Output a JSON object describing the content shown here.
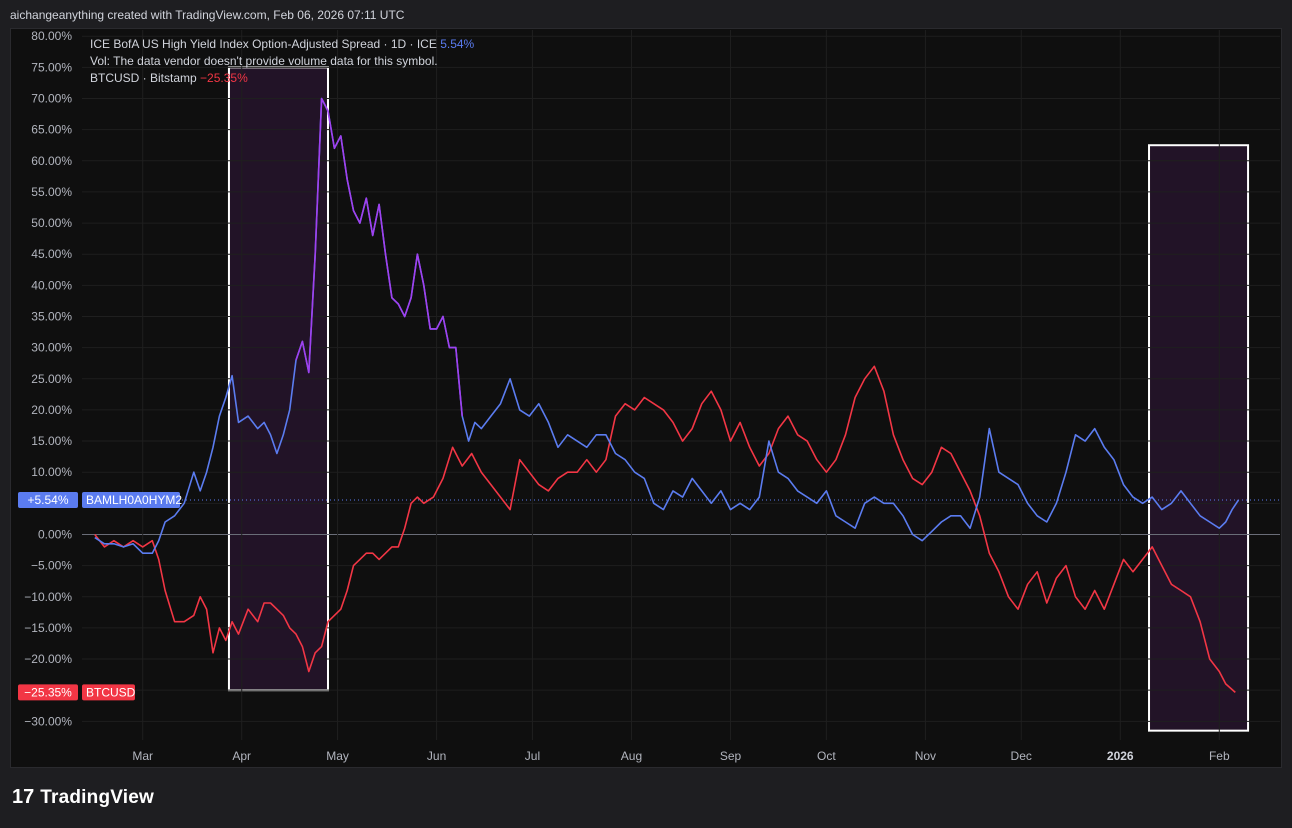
{
  "header": {
    "created_by": "aichangeanything created with TradingView.com, Feb 06, 2026 07:11 UTC"
  },
  "legend": {
    "line1_text": "ICE BofA US High Yield Index Option-Adjusted Spread · 1D · ICE",
    "line1_value": "5.54%",
    "line2_text": "Vol: The data vendor doesn't provide volume data for this symbol.",
    "line3_text": "BTCUSD · Bitstamp",
    "line3_value": "−25.35%"
  },
  "footer": {
    "brand": "TradingView",
    "brand_mark": "17"
  },
  "colors": {
    "spread": "#5b7cf0",
    "spread_highlight": "#a040f0",
    "btc": "#f23645",
    "box_fill": "#2a1630",
    "grid": "#1f1f1f",
    "text": "#b2b5be"
  },
  "chart_data": {
    "type": "line",
    "title": "",
    "xlabel": "",
    "ylabel": "",
    "x_ticks": [
      "Mar",
      "Apr",
      "May",
      "Jun",
      "Jul",
      "Aug",
      "Sep",
      "Oct",
      "Nov",
      "Dec",
      "2026",
      "Feb"
    ],
    "y_ticks": [
      "80.00%",
      "75.00%",
      "70.00%",
      "65.00%",
      "60.00%",
      "55.00%",
      "50.00%",
      "45.00%",
      "40.00%",
      "35.00%",
      "30.00%",
      "25.00%",
      "20.00%",
      "15.00%",
      "10.00%",
      "5.00%",
      "0.00%",
      "−5.00%",
      "−10.00%",
      "−15.00%",
      "−20.00%",
      "−25.00%",
      "−30.00%"
    ],
    "ylim": [
      -33,
      81
    ],
    "xlim": [
      "2025-02-10",
      "2026-02-20"
    ],
    "grid": true,
    "price_labels": [
      {
        "value_label": "+5.54%",
        "name_label": "BAMLH0A0HYM2",
        "value": 5.54,
        "color": "#5b7cf0"
      },
      {
        "value_label": "−25.35%",
        "name_label": "BTCUSD",
        "value": -25.35,
        "color": "#f23645"
      }
    ],
    "highlight_boxes": [
      {
        "x_start": "2025-03-28",
        "x_end": "2025-04-28",
        "y_top": 75,
        "y_bottom": -25
      },
      {
        "x_start": "2026-01-10",
        "x_end": "2026-02-10",
        "y_top": 62.5,
        "y_bottom": -31.5
      }
    ],
    "series": [
      {
        "name": "BAMLH0A0HYM2",
        "final_value": 5.54,
        "points": [
          [
            "2025-02-14",
            -0.5
          ],
          [
            "2025-02-17",
            -1.5
          ],
          [
            "2025-02-20",
            -1.5
          ],
          [
            "2025-02-23",
            -2
          ],
          [
            "2025-02-26",
            -1.5
          ],
          [
            "2025-03-01",
            -3
          ],
          [
            "2025-03-04",
            -3
          ],
          [
            "2025-03-06",
            -1
          ],
          [
            "2025-03-08",
            2
          ],
          [
            "2025-03-11",
            3
          ],
          [
            "2025-03-14",
            5
          ],
          [
            "2025-03-17",
            10
          ],
          [
            "2025-03-19",
            7
          ],
          [
            "2025-03-21",
            10
          ],
          [
            "2025-03-23",
            14
          ],
          [
            "2025-03-25",
            19
          ],
          [
            "2025-03-27",
            22
          ],
          [
            "2025-03-29",
            25.5
          ],
          [
            "2025-03-31",
            18
          ],
          [
            "2025-04-03",
            19
          ],
          [
            "2025-04-06",
            17
          ],
          [
            "2025-04-08",
            18
          ],
          [
            "2025-04-10",
            16
          ],
          [
            "2025-04-12",
            13
          ],
          [
            "2025-04-14",
            16
          ],
          [
            "2025-04-16",
            20
          ],
          [
            "2025-04-18",
            28
          ],
          [
            "2025-04-20",
            31
          ],
          [
            "2025-04-22",
            26
          ],
          [
            "2025-04-24",
            45
          ],
          [
            "2025-04-26",
            70
          ],
          [
            "2025-04-28",
            68
          ],
          [
            "2025-04-30",
            62
          ],
          [
            "2025-05-02",
            64
          ],
          [
            "2025-05-04",
            57
          ],
          [
            "2025-05-06",
            52
          ],
          [
            "2025-05-08",
            50
          ],
          [
            "2025-05-10",
            54
          ],
          [
            "2025-05-12",
            48
          ],
          [
            "2025-05-14",
            53
          ],
          [
            "2025-05-16",
            45
          ],
          [
            "2025-05-18",
            38
          ],
          [
            "2025-05-20",
            37
          ],
          [
            "2025-05-22",
            35
          ],
          [
            "2025-05-24",
            38
          ],
          [
            "2025-05-26",
            45
          ],
          [
            "2025-05-28",
            40
          ],
          [
            "2025-05-30",
            33
          ],
          [
            "2025-06-01",
            33
          ],
          [
            "2025-06-03",
            35
          ],
          [
            "2025-06-05",
            30
          ],
          [
            "2025-06-07",
            30
          ],
          [
            "2025-06-09",
            19
          ],
          [
            "2025-06-11",
            15
          ],
          [
            "2025-06-13",
            18
          ],
          [
            "2025-06-15",
            17
          ],
          [
            "2025-06-18",
            19
          ],
          [
            "2025-06-21",
            21
          ],
          [
            "2025-06-24",
            25
          ],
          [
            "2025-06-27",
            20
          ],
          [
            "2025-06-30",
            19
          ],
          [
            "2025-07-03",
            21
          ],
          [
            "2025-07-06",
            18
          ],
          [
            "2025-07-09",
            14
          ],
          [
            "2025-07-12",
            16
          ],
          [
            "2025-07-15",
            15
          ],
          [
            "2025-07-18",
            14
          ],
          [
            "2025-07-21",
            16
          ],
          [
            "2025-07-24",
            16
          ],
          [
            "2025-07-27",
            13
          ],
          [
            "2025-07-30",
            12
          ],
          [
            "2025-08-02",
            10
          ],
          [
            "2025-08-05",
            9
          ],
          [
            "2025-08-08",
            5
          ],
          [
            "2025-08-11",
            4
          ],
          [
            "2025-08-14",
            7
          ],
          [
            "2025-08-17",
            6
          ],
          [
            "2025-08-20",
            9
          ],
          [
            "2025-08-23",
            7
          ],
          [
            "2025-08-26",
            5
          ],
          [
            "2025-08-29",
            7
          ],
          [
            "2025-09-01",
            4
          ],
          [
            "2025-09-04",
            5
          ],
          [
            "2025-09-07",
            4
          ],
          [
            "2025-09-10",
            6
          ],
          [
            "2025-09-13",
            15
          ],
          [
            "2025-09-16",
            10
          ],
          [
            "2025-09-19",
            9
          ],
          [
            "2025-09-22",
            7
          ],
          [
            "2025-09-25",
            6
          ],
          [
            "2025-09-28",
            5
          ],
          [
            "2025-10-01",
            7
          ],
          [
            "2025-10-04",
            3
          ],
          [
            "2025-10-07",
            2
          ],
          [
            "2025-10-10",
            1
          ],
          [
            "2025-10-13",
            5
          ],
          [
            "2025-10-16",
            6
          ],
          [
            "2025-10-19",
            5
          ],
          [
            "2025-10-22",
            5
          ],
          [
            "2025-10-25",
            3
          ],
          [
            "2025-10-28",
            0
          ],
          [
            "2025-10-31",
            -1
          ],
          [
            "2025-11-03",
            0.5
          ],
          [
            "2025-11-06",
            2
          ],
          [
            "2025-11-09",
            3
          ],
          [
            "2025-11-12",
            3
          ],
          [
            "2025-11-15",
            1
          ],
          [
            "2025-11-18",
            6
          ],
          [
            "2025-11-21",
            17
          ],
          [
            "2025-11-24",
            10
          ],
          [
            "2025-11-27",
            9
          ],
          [
            "2025-11-30",
            8
          ],
          [
            "2025-12-03",
            5
          ],
          [
            "2025-12-06",
            3
          ],
          [
            "2025-12-09",
            2
          ],
          [
            "2025-12-12",
            5
          ],
          [
            "2025-12-15",
            10
          ],
          [
            "2025-12-18",
            16
          ],
          [
            "2025-12-21",
            15
          ],
          [
            "2025-12-24",
            17
          ],
          [
            "2025-12-27",
            14
          ],
          [
            "2025-12-30",
            12
          ],
          [
            "2026-01-02",
            8
          ],
          [
            "2026-01-05",
            6
          ],
          [
            "2026-01-08",
            5
          ],
          [
            "2026-01-11",
            6
          ],
          [
            "2026-01-14",
            4
          ],
          [
            "2026-01-17",
            5
          ],
          [
            "2026-01-20",
            7
          ],
          [
            "2026-01-23",
            5
          ],
          [
            "2026-01-26",
            3
          ],
          [
            "2026-01-29",
            2
          ],
          [
            "2026-02-01",
            1
          ],
          [
            "2026-02-03",
            2
          ],
          [
            "2026-02-05",
            4
          ],
          [
            "2026-02-07",
            5.54
          ]
        ]
      },
      {
        "name": "BTCUSD",
        "final_value": -25.35,
        "points": [
          [
            "2025-02-14",
            0
          ],
          [
            "2025-02-17",
            -2
          ],
          [
            "2025-02-20",
            -1
          ],
          [
            "2025-02-23",
            -2
          ],
          [
            "2025-02-26",
            -1
          ],
          [
            "2025-03-01",
            -2
          ],
          [
            "2025-03-04",
            -1
          ],
          [
            "2025-03-06",
            -4
          ],
          [
            "2025-03-08",
            -9
          ],
          [
            "2025-03-11",
            -14
          ],
          [
            "2025-03-14",
            -14
          ],
          [
            "2025-03-17",
            -13
          ],
          [
            "2025-03-19",
            -10
          ],
          [
            "2025-03-21",
            -12
          ],
          [
            "2025-03-23",
            -19
          ],
          [
            "2025-03-25",
            -15
          ],
          [
            "2025-03-27",
            -17
          ],
          [
            "2025-03-29",
            -14
          ],
          [
            "2025-03-31",
            -16
          ],
          [
            "2025-04-03",
            -12
          ],
          [
            "2025-04-06",
            -14
          ],
          [
            "2025-04-08",
            -11
          ],
          [
            "2025-04-10",
            -11
          ],
          [
            "2025-04-12",
            -12
          ],
          [
            "2025-04-14",
            -13
          ],
          [
            "2025-04-16",
            -15
          ],
          [
            "2025-04-18",
            -16
          ],
          [
            "2025-04-20",
            -18
          ],
          [
            "2025-04-22",
            -22
          ],
          [
            "2025-04-24",
            -19
          ],
          [
            "2025-04-26",
            -18
          ],
          [
            "2025-04-28",
            -14
          ],
          [
            "2025-04-30",
            -13
          ],
          [
            "2025-05-02",
            -12
          ],
          [
            "2025-05-04",
            -9
          ],
          [
            "2025-05-06",
            -5
          ],
          [
            "2025-05-08",
            -4
          ],
          [
            "2025-05-10",
            -3
          ],
          [
            "2025-05-12",
            -3
          ],
          [
            "2025-05-14",
            -4
          ],
          [
            "2025-05-16",
            -3
          ],
          [
            "2025-05-18",
            -2
          ],
          [
            "2025-05-20",
            -2
          ],
          [
            "2025-05-22",
            1
          ],
          [
            "2025-05-24",
            5
          ],
          [
            "2025-05-26",
            6
          ],
          [
            "2025-05-28",
            5
          ],
          [
            "2025-05-31",
            6
          ],
          [
            "2025-06-03",
            9
          ],
          [
            "2025-06-06",
            14
          ],
          [
            "2025-06-09",
            11
          ],
          [
            "2025-06-12",
            13
          ],
          [
            "2025-06-15",
            10
          ],
          [
            "2025-06-18",
            8
          ],
          [
            "2025-06-21",
            6
          ],
          [
            "2025-06-24",
            4
          ],
          [
            "2025-06-27",
            12
          ],
          [
            "2025-06-30",
            10
          ],
          [
            "2025-07-03",
            8
          ],
          [
            "2025-07-06",
            7
          ],
          [
            "2025-07-09",
            9
          ],
          [
            "2025-07-12",
            10
          ],
          [
            "2025-07-15",
            10
          ],
          [
            "2025-07-18",
            12
          ],
          [
            "2025-07-21",
            10
          ],
          [
            "2025-07-24",
            12
          ],
          [
            "2025-07-27",
            19
          ],
          [
            "2025-07-30",
            21
          ],
          [
            "2025-08-02",
            20
          ],
          [
            "2025-08-05",
            22
          ],
          [
            "2025-08-08",
            21
          ],
          [
            "2025-08-11",
            20
          ],
          [
            "2025-08-14",
            18
          ],
          [
            "2025-08-17",
            15
          ],
          [
            "2025-08-20",
            17
          ],
          [
            "2025-08-23",
            21
          ],
          [
            "2025-08-26",
            23
          ],
          [
            "2025-08-29",
            20
          ],
          [
            "2025-09-01",
            15
          ],
          [
            "2025-09-04",
            18
          ],
          [
            "2025-09-07",
            14
          ],
          [
            "2025-09-10",
            11
          ],
          [
            "2025-09-13",
            13
          ],
          [
            "2025-09-16",
            17
          ],
          [
            "2025-09-19",
            19
          ],
          [
            "2025-09-22",
            16
          ],
          [
            "2025-09-25",
            15
          ],
          [
            "2025-09-28",
            12
          ],
          [
            "2025-10-01",
            10
          ],
          [
            "2025-10-04",
            12
          ],
          [
            "2025-10-07",
            16
          ],
          [
            "2025-10-10",
            22
          ],
          [
            "2025-10-13",
            25
          ],
          [
            "2025-10-16",
            27
          ],
          [
            "2025-10-19",
            23
          ],
          [
            "2025-10-22",
            16
          ],
          [
            "2025-10-25",
            12
          ],
          [
            "2025-10-28",
            9
          ],
          [
            "2025-10-31",
            8
          ],
          [
            "2025-11-03",
            10
          ],
          [
            "2025-11-06",
            14
          ],
          [
            "2025-11-09",
            13
          ],
          [
            "2025-11-12",
            10
          ],
          [
            "2025-11-15",
            7
          ],
          [
            "2025-11-18",
            3
          ],
          [
            "2025-11-21",
            -3
          ],
          [
            "2025-11-24",
            -6
          ],
          [
            "2025-11-27",
            -10
          ],
          [
            "2025-11-30",
            -12
          ],
          [
            "2025-12-03",
            -8
          ],
          [
            "2025-12-06",
            -6
          ],
          [
            "2025-12-09",
            -11
          ],
          [
            "2025-12-12",
            -7
          ],
          [
            "2025-12-15",
            -5
          ],
          [
            "2025-12-18",
            -10
          ],
          [
            "2025-12-21",
            -12
          ],
          [
            "2025-12-24",
            -9
          ],
          [
            "2025-12-27",
            -12
          ],
          [
            "2025-12-30",
            -8
          ],
          [
            "2026-01-02",
            -4
          ],
          [
            "2026-01-05",
            -6
          ],
          [
            "2026-01-08",
            -4
          ],
          [
            "2026-01-11",
            -2
          ],
          [
            "2026-01-14",
            -5
          ],
          [
            "2026-01-17",
            -8
          ],
          [
            "2026-01-20",
            -9
          ],
          [
            "2026-01-23",
            -10
          ],
          [
            "2026-01-26",
            -14
          ],
          [
            "2026-01-29",
            -20
          ],
          [
            "2026-02-01",
            -22
          ],
          [
            "2026-02-03",
            -24
          ],
          [
            "2026-02-06",
            -25.35
          ]
        ]
      }
    ]
  }
}
